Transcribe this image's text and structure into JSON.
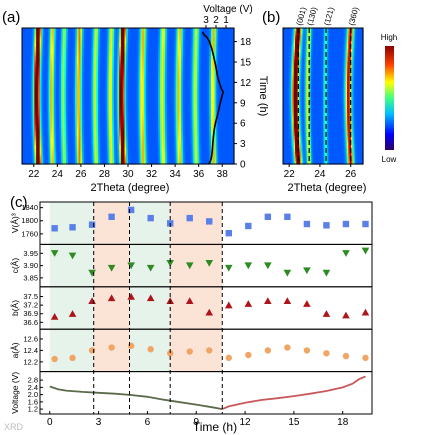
{
  "panels": {
    "a": "(a)",
    "b": "(b)",
    "c": "(c)"
  },
  "watermark": "XRD",
  "colors": {
    "cmap": [
      "#00008b",
      "#0000ff",
      "#0080ff",
      "#00ffff",
      "#80ff80",
      "#ffff00",
      "#ff8000",
      "#ff0000",
      "#800000"
    ],
    "blue_marker": "#5b7fe8",
    "green_marker": "#2e8b22",
    "red_marker": "#b0141b",
    "orange_marker": "#f0a565",
    "shade_green": "#e6f3ea",
    "shade_orange": "#fbe4d6",
    "discharge_line": "#5b6b4a",
    "charge_line": "#c9585a"
  },
  "chart_data": [
    {
      "type": "heatmap",
      "panel": "a",
      "xlabel": "2Theta (degree)",
      "ylabel": "Time (h)",
      "top_label": "Voltage (V)",
      "x_ticks": [
        22,
        24,
        26,
        28,
        30,
        32,
        34,
        36,
        38
      ],
      "y_ticks": [
        0,
        3,
        6,
        9,
        12,
        15,
        18
      ],
      "voltage_ticks": [
        "3",
        "2",
        "1"
      ],
      "xlim": [
        21,
        39
      ],
      "ylim": [
        0,
        20
      ],
      "peaks": [
        {
          "pos": 22.4,
          "width": 0.18,
          "intensity": 1.0,
          "shift": 0.15
        },
        {
          "pos": 23.6,
          "width": 0.14,
          "intensity": 0.55,
          "shift": 0.1
        },
        {
          "pos": 24.6,
          "width": 0.14,
          "intensity": 0.4,
          "shift": 0.1
        },
        {
          "pos": 25.9,
          "width": 0.16,
          "intensity": 0.6,
          "shift": 0.1
        },
        {
          "pos": 27.3,
          "width": 0.15,
          "intensity": 0.45,
          "shift": 0.1
        },
        {
          "pos": 28.6,
          "width": 0.15,
          "intensity": 0.5,
          "shift": 0.1
        },
        {
          "pos": 29.6,
          "width": 0.18,
          "intensity": 1.0,
          "shift": 0.15
        },
        {
          "pos": 31.3,
          "width": 0.16,
          "intensity": 0.55,
          "shift": 0.1
        },
        {
          "pos": 33.0,
          "width": 0.16,
          "intensity": 0.5,
          "shift": 0.1
        },
        {
          "pos": 34.4,
          "width": 0.16,
          "intensity": 0.55,
          "shift": 0.1
        },
        {
          "pos": 35.8,
          "width": 0.16,
          "intensity": 0.45,
          "shift": 0.1
        },
        {
          "pos": 37.3,
          "width": 0.15,
          "intensity": 0.55,
          "shift": 0.1
        }
      ]
    },
    {
      "type": "heatmap",
      "panel": "b",
      "x_ticks": [
        22,
        24,
        26
      ],
      "xlim": [
        21.6,
        26.8
      ],
      "peak_labels": [
        "(001)",
        "(130)",
        "(121)",
        "(360)"
      ],
      "colorbar_high": "High",
      "colorbar_low": "Low",
      "peaks": [
        {
          "pos": 22.6,
          "width": 0.15,
          "intensity": 1.0,
          "shift": 0.2
        },
        {
          "pos": 23.3,
          "width": 0.1,
          "intensity": 0.5,
          "shift": 0.1
        },
        {
          "pos": 24.4,
          "width": 0.08,
          "intensity": 0.3,
          "shift": 0.05
        },
        {
          "pos": 26.0,
          "width": 0.14,
          "intensity": 0.75,
          "shift": 0.15
        }
      ]
    },
    {
      "type": "scatter",
      "panel": "c",
      "xlabel": "Time (h)",
      "x_ticks": [
        0,
        3,
        6,
        9,
        12,
        15,
        18
      ],
      "xlim": [
        -0.6,
        19.8
      ],
      "dashed_lines": [
        2.7,
        4.9,
        7.4,
        10.6
      ],
      "shaded": [
        {
          "from": 0,
          "to": 2.7,
          "color": "green"
        },
        {
          "from": 2.7,
          "to": 4.9,
          "color": "orange"
        },
        {
          "from": 4.9,
          "to": 7.4,
          "color": "green"
        },
        {
          "from": 7.4,
          "to": 10.6,
          "color": "orange"
        }
      ],
      "rows": [
        {
          "ylabel": "V(Å)³",
          "ticks": [
            "1760",
            "1800",
            "1840"
          ],
          "ylim": [
            1740,
            1845
          ],
          "marker": "square",
          "color_key": "blue_marker",
          "x": [
            0.3,
            1.4,
            2.6,
            3.8,
            5.0,
            6.2,
            7.4,
            8.6,
            9.8,
            11.0,
            12.2,
            13.4,
            14.6,
            15.8,
            17.0,
            18.2,
            19.4
          ],
          "y": [
            1777,
            1780,
            1788,
            1812,
            1833,
            1808,
            1792,
            1808,
            1798,
            1762,
            1784,
            1812,
            1812,
            1790,
            1786,
            1790,
            1790
          ]
        },
        {
          "ylabel": "c(Å)",
          "ticks": [
            "3.85",
            "3.90",
            "3.95"
          ],
          "ylim": [
            3.83,
            3.97
          ],
          "marker": "triangle-down",
          "color_key": "green_marker",
          "x": [
            0.3,
            1.4,
            2.6,
            3.8,
            5.0,
            6.2,
            7.4,
            8.6,
            9.8,
            11.0,
            12.2,
            13.4,
            14.6,
            15.8,
            17.0,
            18.2,
            19.4
          ],
          "y": [
            3.95,
            3.94,
            3.87,
            3.89,
            3.9,
            3.89,
            3.91,
            3.9,
            3.91,
            3.89,
            3.9,
            3.9,
            3.87,
            3.88,
            3.87,
            3.95,
            3.96
          ]
        },
        {
          "ylabel": "b(Å)",
          "ticks": [
            "36.6",
            "36.9",
            "37.2",
            "37.5"
          ],
          "ylim": [
            36.5,
            37.7
          ],
          "marker": "triangle-up",
          "color_key": "red_marker",
          "x": [
            0.3,
            1.4,
            2.6,
            3.8,
            5.0,
            6.2,
            7.4,
            8.6,
            9.8,
            11.0,
            12.2,
            13.4,
            14.6,
            15.8,
            17.0,
            18.2,
            19.4
          ],
          "y": [
            36.8,
            36.9,
            37.35,
            37.45,
            37.5,
            37.45,
            37.35,
            37.35,
            36.95,
            37.2,
            37.25,
            37.35,
            37.35,
            37.25,
            36.9,
            36.85,
            36.95
          ]
        },
        {
          "ylabel": "a(Å)",
          "ticks": [
            "12.2",
            "12.4",
            "12.6"
          ],
          "ylim": [
            12.1,
            12.7
          ],
          "marker": "circle",
          "color_key": "orange_marker",
          "x": [
            0.3,
            1.4,
            2.6,
            3.8,
            5.0,
            6.2,
            7.4,
            8.6,
            9.8,
            11.0,
            12.2,
            13.4,
            14.6,
            15.8,
            17.0,
            18.2,
            19.4
          ],
          "y": [
            12.25,
            12.27,
            12.4,
            12.45,
            12.48,
            12.42,
            12.35,
            12.38,
            12.4,
            12.27,
            12.32,
            12.4,
            12.45,
            12.4,
            12.35,
            12.3,
            12.27
          ]
        },
        {
          "ylabel": "Voltage (V)",
          "ticks": [
            "1.2",
            "1.6",
            "2.0",
            "2.4",
            "2.8"
          ],
          "ylim": [
            1.15,
            3.05
          ],
          "line": true,
          "discharge": {
            "x": [
              0,
              0.5,
              1,
              2,
              3,
              4,
              5,
              6,
              7,
              8,
              9,
              10,
              10.6
            ],
            "y": [
              2.45,
              2.3,
              2.22,
              2.15,
              2.1,
              2.05,
              1.98,
              1.88,
              1.72,
              1.58,
              1.45,
              1.3,
              1.2
            ]
          },
          "charge": {
            "x": [
              10.6,
              11,
              12,
              13,
              14,
              15,
              16,
              17,
              18,
              18.6,
              19.0,
              19.4
            ],
            "y": [
              1.2,
              1.35,
              1.55,
              1.7,
              1.8,
              1.92,
              2.05,
              2.2,
              2.4,
              2.6,
              2.85,
              3.0
            ]
          }
        }
      ]
    }
  ]
}
